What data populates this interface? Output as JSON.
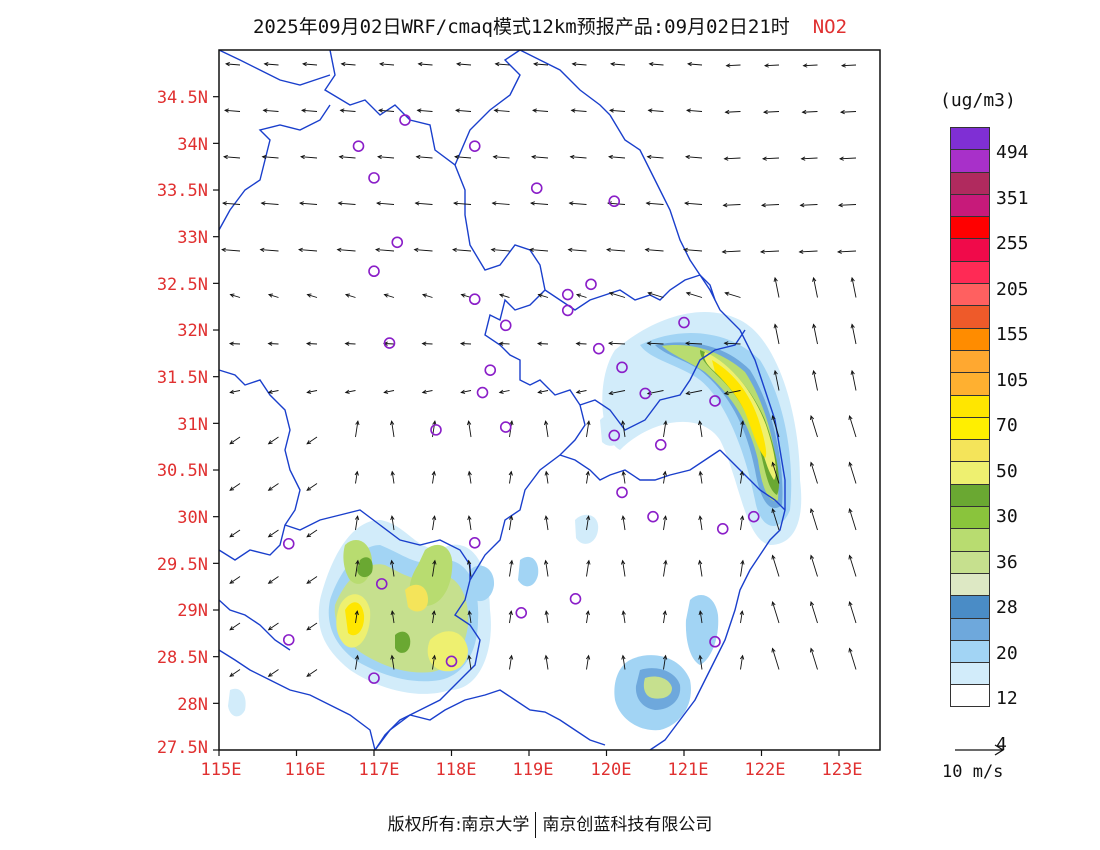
{
  "title": {
    "prefix": "2025年09月02日WRF/cmaq模式12km预报产品:09月02日21时",
    "pollutant": "NO2"
  },
  "axes": {
    "lat_labels": [
      "34.5N",
      "34N",
      "33.5N",
      "33N",
      "32.5N",
      "32N",
      "31.5N",
      "31N",
      "30.5N",
      "30N",
      "29.5N",
      "29N",
      "28.5N",
      "28N",
      "27.5N"
    ],
    "lon_labels": [
      "115E",
      "116E",
      "117E",
      "118E",
      "119E",
      "120E",
      "121E",
      "122E",
      "123E"
    ],
    "label_color": "#e03030"
  },
  "legend": {
    "unit": "(ug/m3)",
    "colors": [
      "#7f2fd4",
      "#a830c9",
      "#b02a5e",
      "#c71a7a",
      "#ff0000",
      "#f00a4a",
      "#ff2a55",
      "#ff6060",
      "#ee5a2a",
      "#ff8c00",
      "#ffa830",
      "#ffb030",
      "#ffe600",
      "#ffef00",
      "#f4e45a",
      "#eef070",
      "#6aa832",
      "#8ac43c",
      "#b8dc70",
      "#c6e08e",
      "#dde8c4",
      "#4a8cc6",
      "#6ea8dc",
      "#a2d4f4",
      "#d2ecfa",
      "#ffffff"
    ],
    "labels": [
      "494",
      "351",
      "255",
      "205",
      "155",
      "105",
      "70",
      "50",
      "30",
      "36",
      "28",
      "20",
      "12",
      "4"
    ]
  },
  "wind_reference": {
    "label": "10 m/s"
  },
  "footer": {
    "left": "版权所有:南京大学",
    "right": "南京创蓝科技有限公司"
  },
  "stations": [
    {
      "lon": 117.4,
      "lat": 34.25
    },
    {
      "lon": 116.8,
      "lat": 33.97
    },
    {
      "lon": 118.3,
      "lat": 33.97
    },
    {
      "lon": 117.0,
      "lat": 33.63
    },
    {
      "lon": 119.1,
      "lat": 33.52
    },
    {
      "lon": 120.1,
      "lat": 33.38
    },
    {
      "lon": 117.3,
      "lat": 32.94
    },
    {
      "lon": 117.0,
      "lat": 32.63
    },
    {
      "lon": 119.5,
      "lat": 32.38
    },
    {
      "lon": 119.8,
      "lat": 32.49
    },
    {
      "lon": 118.3,
      "lat": 32.33
    },
    {
      "lon": 119.5,
      "lat": 32.21
    },
    {
      "lon": 118.7,
      "lat": 32.05
    },
    {
      "lon": 117.2,
      "lat": 31.86
    },
    {
      "lon": 119.9,
      "lat": 31.8
    },
    {
      "lon": 121.0,
      "lat": 32.08
    },
    {
      "lon": 120.2,
      "lat": 31.6
    },
    {
      "lon": 118.5,
      "lat": 31.57
    },
    {
      "lon": 118.4,
      "lat": 31.33
    },
    {
      "lon": 120.5,
      "lat": 31.32
    },
    {
      "lon": 121.4,
      "lat": 31.24
    },
    {
      "lon": 117.8,
      "lat": 30.93
    },
    {
      "lon": 118.7,
      "lat": 30.96
    },
    {
      "lon": 120.1,
      "lat": 30.87
    },
    {
      "lon": 120.7,
      "lat": 30.77
    },
    {
      "lon": 120.2,
      "lat": 30.26
    },
    {
      "lon": 120.6,
      "lat": 30.0
    },
    {
      "lon": 121.5,
      "lat": 29.87
    },
    {
      "lon": 121.9,
      "lat": 30.0
    },
    {
      "lon": 115.9,
      "lat": 29.71
    },
    {
      "lon": 118.3,
      "lat": 29.72
    },
    {
      "lon": 117.1,
      "lat": 29.28
    },
    {
      "lon": 119.6,
      "lat": 29.12
    },
    {
      "lon": 118.9,
      "lat": 28.97
    },
    {
      "lon": 115.9,
      "lat": 28.68
    },
    {
      "lon": 121.4,
      "lat": 28.66
    },
    {
      "lon": 118.0,
      "lat": 28.45
    },
    {
      "lon": 117.0,
      "lat": 28.27
    }
  ]
}
